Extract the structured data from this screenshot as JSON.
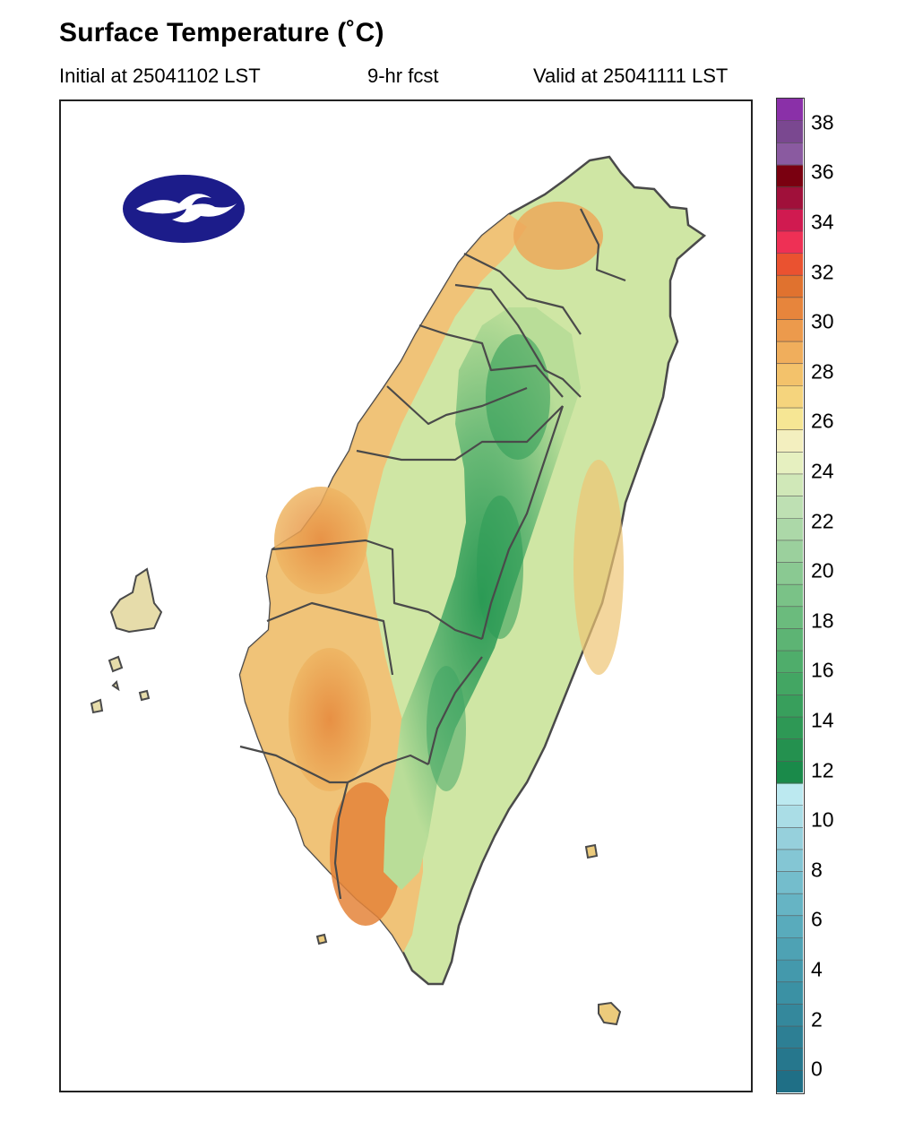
{
  "header": {
    "title": "Surface Temperature (˚C)",
    "initial": "Initial at 25041102 LST",
    "forecast": "9-hr fcst",
    "valid": "Valid at 25041111 LST"
  },
  "map": {
    "region": "Taiwan",
    "logo_icon": "cwa-logo-icon",
    "ocean_color": "#ffffff",
    "border_color": "#4a4a4a"
  },
  "colorbar": {
    "min": -1,
    "max": 39,
    "step": 1,
    "tick_labels": [
      "0",
      "2",
      "4",
      "6",
      "8",
      "10",
      "12",
      "14",
      "16",
      "18",
      "20",
      "22",
      "24",
      "26",
      "28",
      "30",
      "32",
      "34",
      "36",
      "38"
    ],
    "colors": [
      "#1f6f86",
      "#26778d",
      "#2d7f94",
      "#34889c",
      "#3b91a4",
      "#4499ac",
      "#4ea2b4",
      "#59abbc",
      "#66b4c4",
      "#74bdcc",
      "#84c6d4",
      "#96d0dc",
      "#aadde6",
      "#bce9f0",
      "#1a8a4a",
      "#24914f",
      "#2e9855",
      "#389f5c",
      "#43a663",
      "#4fad6b",
      "#5db474",
      "#6bbb7d",
      "#7ac287",
      "#8ac992",
      "#9bd09d",
      "#acd8a8",
      "#bee0b3",
      "#d0e8b8",
      "#e6f0c0",
      "#f3efbf",
      "#f6e694",
      "#f5d47d",
      "#f3c26b",
      "#f0ae5c",
      "#ec9a4c",
      "#e7853c",
      "#e0722f",
      "#ea5230",
      "#ee3055",
      "#d01a50",
      "#a0103a",
      "#7a0010",
      "#8a5aa0",
      "#7a4890",
      "#8a30a8"
    ]
  },
  "legend_ticks_note": ""
}
